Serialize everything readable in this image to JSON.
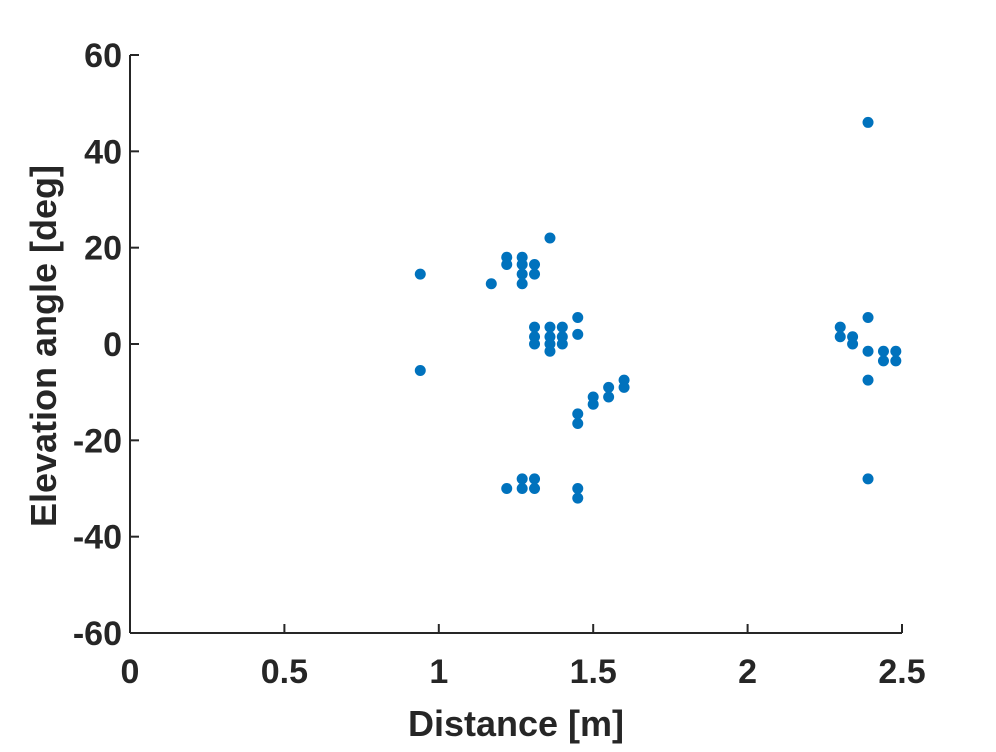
{
  "chart_data": {
    "type": "scatter",
    "title": "",
    "xlabel": "Distance [m]",
    "ylabel": "Elevation angle [deg]",
    "xlim": [
      0,
      2.5
    ],
    "ylim": [
      -60,
      60
    ],
    "xticks": [
      0,
      0.5,
      1,
      1.5,
      2,
      2.5
    ],
    "xtick_labels": [
      "0",
      "0.5",
      "1",
      "1.5",
      "2",
      "2.5"
    ],
    "yticks": [
      -60,
      -40,
      -20,
      0,
      20,
      40,
      60
    ],
    "ytick_labels": [
      "-60",
      "-40",
      "-20",
      "0",
      "20",
      "40",
      "60"
    ],
    "grid": false,
    "legend": "none",
    "marker_color": "#0072BD",
    "axis_color": "#262626",
    "series": [
      {
        "points": [
          [
            0.94,
            14.5
          ],
          [
            0.94,
            -5.5
          ],
          [
            1.17,
            12.5
          ],
          [
            1.22,
            18
          ],
          [
            1.22,
            16.5
          ],
          [
            1.22,
            -30
          ],
          [
            1.27,
            18
          ],
          [
            1.27,
            16.5
          ],
          [
            1.27,
            14.5
          ],
          [
            1.27,
            12.5
          ],
          [
            1.27,
            -28
          ],
          [
            1.27,
            -30
          ],
          [
            1.31,
            16.5
          ],
          [
            1.31,
            14.5
          ],
          [
            1.31,
            3.5
          ],
          [
            1.31,
            1.5
          ],
          [
            1.31,
            0
          ],
          [
            1.31,
            -28
          ],
          [
            1.31,
            -30
          ],
          [
            1.36,
            22
          ],
          [
            1.36,
            3.5
          ],
          [
            1.36,
            1.5
          ],
          [
            1.36,
            0
          ],
          [
            1.36,
            -1.5
          ],
          [
            1.4,
            3.5
          ],
          [
            1.4,
            1.5
          ],
          [
            1.4,
            0
          ],
          [
            1.45,
            5.5
          ],
          [
            1.45,
            2
          ],
          [
            1.45,
            -14.5
          ],
          [
            1.45,
            -16.5
          ],
          [
            1.45,
            -30
          ],
          [
            1.45,
            -32
          ],
          [
            1.5,
            -11
          ],
          [
            1.5,
            -12.5
          ],
          [
            1.55,
            -9
          ],
          [
            1.55,
            -11
          ],
          [
            1.6,
            -7.5
          ],
          [
            1.6,
            -9
          ],
          [
            2.3,
            3.5
          ],
          [
            2.3,
            1.5
          ],
          [
            2.34,
            1.5
          ],
          [
            2.34,
            0
          ],
          [
            2.39,
            46
          ],
          [
            2.39,
            5.5
          ],
          [
            2.39,
            -1.5
          ],
          [
            2.39,
            -7.5
          ],
          [
            2.39,
            -28
          ],
          [
            2.44,
            -1.5
          ],
          [
            2.44,
            -3.5
          ],
          [
            2.48,
            -1.5
          ],
          [
            2.48,
            -3.5
          ]
        ]
      }
    ]
  }
}
